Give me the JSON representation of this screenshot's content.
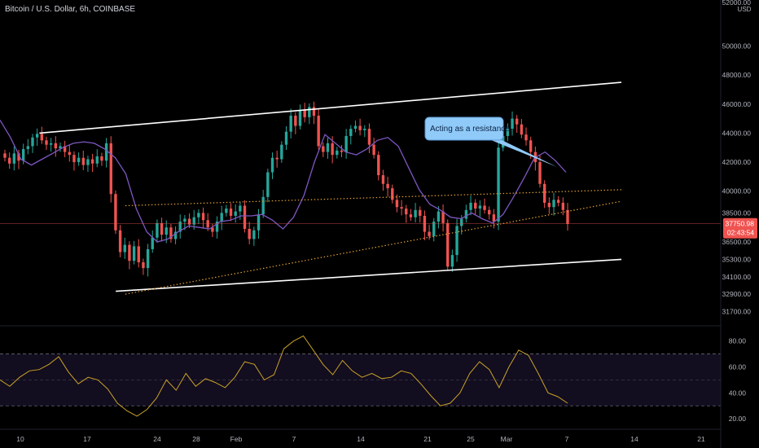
{
  "header": {
    "symbol_title": "Bitcoin / U.S. Dollar, 6h, COINBASE"
  },
  "price_scale": {
    "currency": "USD",
    "labels": [
      "52000.00",
      "50000.00",
      "48000.00",
      "46000.00",
      "44000.00",
      "42000.00",
      "40000.00",
      "38500.00",
      "36500.00",
      "35300.00",
      "34100.00",
      "32900.00",
      "31700.00"
    ],
    "current_price": "37750.98",
    "countdown": "02:43:54"
  },
  "rsi_scale": {
    "labels": [
      "80.00",
      "60.00",
      "40.00",
      "20.00"
    ]
  },
  "time_axis": {
    "labels": [
      "10",
      "17",
      "24",
      "28",
      "Feb",
      "7",
      "14",
      "21",
      "25",
      "Mar",
      "7",
      "14",
      "21"
    ]
  },
  "annotation": {
    "text": "Acting as a resistance."
  },
  "colors": {
    "up": "#26a69a",
    "down": "#ef5350",
    "ma": "#7e57c2",
    "rsi": "#c9a227",
    "trend_solid": "#ffffff",
    "trend_dotted": "#e0a030",
    "price_line": "#ef5350",
    "callout": "#90caf9"
  },
  "chart_data": {
    "type": "candlestick",
    "interval": "6h",
    "x_axis": "date (Jan 10 → Mar 7)",
    "price_close": [
      42300,
      41900,
      42600,
      42100,
      42900,
      43100,
      43700,
      43950,
      43500,
      43200,
      43300,
      42950,
      43100,
      42700,
      42500,
      42000,
      42300,
      41800,
      42200,
      41900,
      42400,
      42100,
      43300,
      39800,
      37300,
      35800,
      36300,
      35200,
      36200,
      35100,
      34700,
      36000,
      36800,
      37800,
      37000,
      37500,
      36700,
      37200,
      37900,
      38100,
      37700,
      38200,
      38500,
      38000,
      37500,
      37200,
      37900,
      38500,
      38800,
      38300,
      38600,
      39000,
      37400,
      36700,
      37300,
      38400,
      39600,
      41300,
      42300,
      42200,
      43200,
      44100,
      45200,
      44500,
      45600,
      45100,
      45800,
      45200,
      43100,
      42700,
      43300,
      42500,
      42800,
      42700,
      43800,
      44300,
      44500,
      44200,
      44300,
      43200,
      42500,
      41100,
      40500,
      40200,
      39400,
      38900,
      38800,
      38400,
      38200,
      38700,
      38300,
      37200,
      36900,
      37900,
      38600,
      37800,
      34800,
      35600,
      37600,
      38100,
      38700,
      39200,
      38800,
      39000,
      38700,
      38400,
      37900,
      43000,
      43800,
      44300,
      45000,
      44600,
      43900,
      43500,
      42700,
      42000,
      40500,
      39200,
      38900,
      39400,
      39200,
      38700,
      37751
    ],
    "ma_approx": [
      44900,
      43700,
      42200,
      41800,
      42200,
      42600,
      43000,
      43300,
      43400,
      43300,
      42900,
      42300,
      41200,
      38800,
      37200,
      36500,
      36700,
      37200,
      37600,
      37500,
      37400,
      37900,
      38000,
      38300,
      38300,
      38400,
      38000,
      37400,
      38200,
      39700,
      42000,
      43900,
      43300,
      42700,
      42500,
      42900,
      43500,
      43700,
      43100,
      41600,
      40100,
      39100,
      38700,
      38200,
      38100,
      38500,
      38100,
      37800,
      38400,
      39600,
      40900,
      42300,
      42700,
      42100,
      41300
    ],
    "rsi_approx": [
      50,
      45,
      52,
      57,
      58,
      62,
      68,
      56,
      47,
      52,
      50,
      43,
      32,
      26,
      22,
      27,
      36,
      50,
      42,
      55,
      45,
      51,
      48,
      44,
      52,
      64,
      62,
      50,
      54,
      74,
      80,
      84,
      73,
      62,
      54,
      65,
      57,
      52,
      55,
      51,
      52,
      57,
      55,
      47,
      38,
      30,
      32,
      40,
      55,
      64,
      58,
      44,
      60,
      73,
      69,
      55,
      40,
      37,
      32
    ],
    "price_ylim": [
      31000,
      52500
    ],
    "rsi_ylim": [
      15,
      88
    ],
    "rsi_bands": [
      30,
      50,
      70
    ],
    "trendlines": [
      {
        "style": "solid",
        "from": {
          "t": "2022-01-12",
          "v": 44000
        },
        "to": {
          "t": "2022-03-14",
          "v": 47500
        }
      },
      {
        "style": "solid",
        "from": {
          "t": "2022-01-20",
          "v": 33100
        },
        "to": {
          "t": "2022-03-14",
          "v": 35300
        }
      },
      {
        "style": "dotted",
        "from": {
          "t": "2022-01-21",
          "v": 39000
        },
        "to": {
          "t": "2022-03-14",
          "v": 40100
        }
      },
      {
        "style": "dotted",
        "from": {
          "t": "2022-01-21",
          "v": 32900
        },
        "to": {
          "t": "2022-03-14",
          "v": 39300
        }
      }
    ],
    "legend": "none"
  }
}
